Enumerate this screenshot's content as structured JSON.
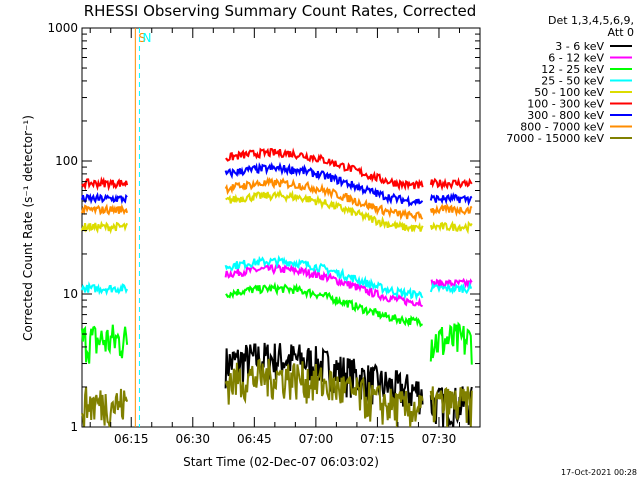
{
  "chart_data": {
    "type": "line",
    "title": "RHESSI Observing Summary Count Rates, Corrected",
    "xlabel": "Start Time (02-Dec-07 06:03:02)",
    "ylabel": "Corrected Count Rate (s⁻¹ detector⁻¹)",
    "yscale": "log",
    "ylim": [
      1,
      1000
    ],
    "y_ticks": [
      {
        "value": 1,
        "label": "1"
      },
      {
        "value": 10,
        "label": "10"
      },
      {
        "value": 100,
        "label": "100"
      },
      {
        "value": 1000,
        "label": "1000"
      }
    ],
    "xlim": [
      "06:03",
      "07:40"
    ],
    "x_ticks": [
      "06:15",
      "06:30",
      "06:45",
      "07:00",
      "07:15",
      "07:30"
    ],
    "legend_header": [
      "Det 1,3,4,5,6,9,",
      "Att 0"
    ],
    "legend_placement": "top-right outside plot",
    "series": [
      {
        "name": "3 - 6 keV",
        "color": "#000000"
      },
      {
        "name": "6 - 12 keV",
        "color": "#ff00ff"
      },
      {
        "name": "12 - 25 keV",
        "color": "#00ff00"
      },
      {
        "name": "25 - 50 keV",
        "color": "#00ffff"
      },
      {
        "name": "50 - 100 keV",
        "color": "#dcdc00"
      },
      {
        "name": "100 - 300 keV",
        "color": "#ff0000"
      },
      {
        "name": "300 - 800 keV",
        "color": "#0000ff"
      },
      {
        "name": "800 - 7000 keV",
        "color": "#ff8c00"
      },
      {
        "name": "7000 - 15000 keV",
        "color": "#808000"
      }
    ],
    "series_levels": {
      "segment_times": [
        [
          "06:03",
          "06:14"
        ],
        [
          "06:38",
          "07:26"
        ],
        [
          "07:28",
          "07:38"
        ]
      ],
      "levels": [
        [
          null,
          3.0,
          1.5
        ],
        [
          null,
          14,
          12
        ],
        [
          4.5,
          10,
          4.5
        ],
        [
          11,
          16,
          11
        ],
        [
          32,
          50,
          32
        ],
        [
          68,
          105,
          68
        ],
        [
          52,
          80,
          52
        ],
        [
          43,
          62,
          43
        ],
        [
          1.5,
          2.2,
          1.5
        ]
      ]
    },
    "markers": [
      {
        "label": "S",
        "color": "#ff8c00",
        "time": "06:16",
        "style": "solid"
      },
      {
        "label": "N",
        "color": "#00ffff",
        "time": "06:17",
        "style": "dashed"
      }
    ],
    "timestamp": "17-Oct-2021 00:28"
  }
}
